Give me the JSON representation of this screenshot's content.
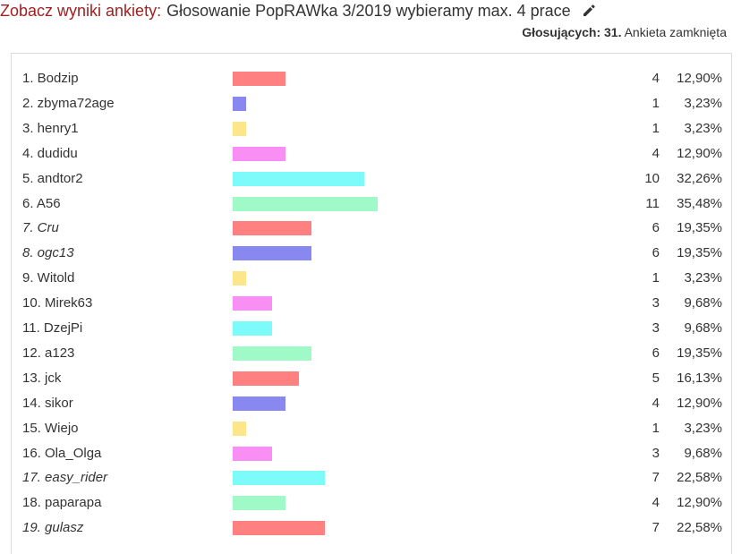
{
  "header": {
    "title_prefix": "Zobacz wyniki ankiety:",
    "title": "Głosowanie PopRAWka 3/2019 wybieramy max. 4 prace",
    "edit_icon": "pencil-icon"
  },
  "meta": {
    "voters_label": "Głosujących:",
    "voters_count": "31",
    "status": "Ankieta zamknięta"
  },
  "colors": [
    "#ff8080",
    "#8888f0",
    "#fce68a",
    "#f98ef5",
    "#7dfbfb",
    "#9ffac8"
  ],
  "results": [
    {
      "label": "1. Bodzip",
      "votes": "4",
      "percent": "12,90%",
      "italic": false
    },
    {
      "label": "2. zbyma72age",
      "votes": "1",
      "percent": "3,23%",
      "italic": false
    },
    {
      "label": "3. henry1",
      "votes": "1",
      "percent": "3,23%",
      "italic": false
    },
    {
      "label": "4. dudidu",
      "votes": "4",
      "percent": "12,90%",
      "italic": false
    },
    {
      "label": "5. andtor2",
      "votes": "10",
      "percent": "32,26%",
      "italic": false
    },
    {
      "label": "6. A56",
      "votes": "11",
      "percent": "35,48%",
      "italic": false
    },
    {
      "label": "7. Cru",
      "votes": "6",
      "percent": "19,35%",
      "italic": true
    },
    {
      "label": "8. ogc13",
      "votes": "6",
      "percent": "19,35%",
      "italic": true
    },
    {
      "label": "9. Witold",
      "votes": "1",
      "percent": "3,23%",
      "italic": false
    },
    {
      "label": "10. Mirek63",
      "votes": "3",
      "percent": "9,68%",
      "italic": false
    },
    {
      "label": "11. DzejPi",
      "votes": "3",
      "percent": "9,68%",
      "italic": false
    },
    {
      "label": "12. a123",
      "votes": "6",
      "percent": "19,35%",
      "italic": false
    },
    {
      "label": "13. jck",
      "votes": "5",
      "percent": "16,13%",
      "italic": false
    },
    {
      "label": "14. sikor",
      "votes": "4",
      "percent": "12,90%",
      "italic": false
    },
    {
      "label": "15. Wiejo",
      "votes": "1",
      "percent": "3,23%",
      "italic": false
    },
    {
      "label": "16. Ola_Olga",
      "votes": "3",
      "percent": "9,68%",
      "italic": false
    },
    {
      "label": "17. easy_rider",
      "votes": "7",
      "percent": "22,58%",
      "italic": true
    },
    {
      "label": "18. paparapa",
      "votes": "4",
      "percent": "12,90%",
      "italic": false
    },
    {
      "label": "19. gulasz",
      "votes": "7",
      "percent": "22,58%",
      "italic": true
    }
  ]
}
